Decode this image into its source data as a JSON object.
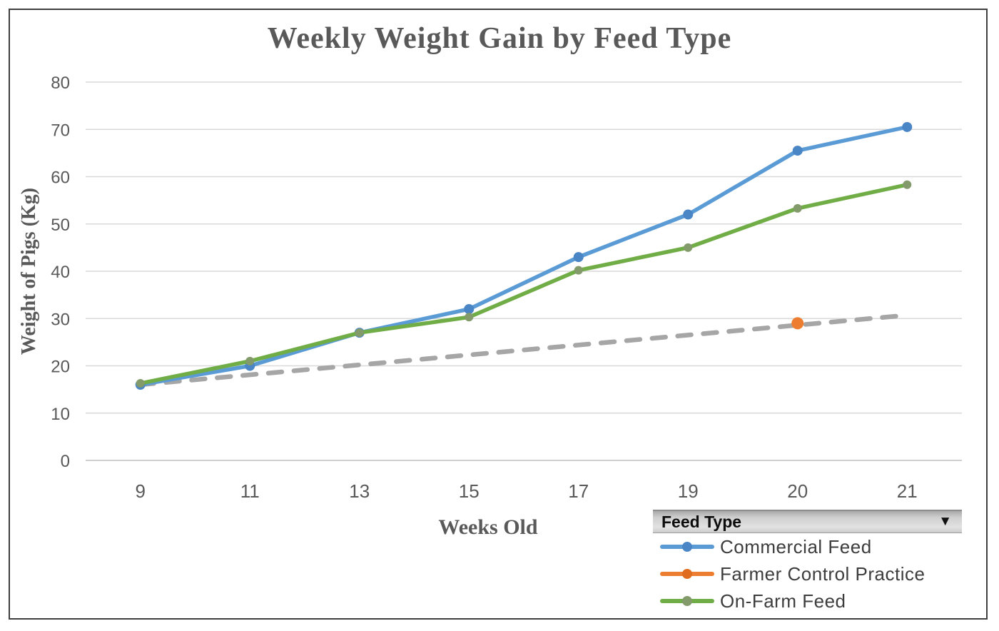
{
  "figure": {
    "title": "Weekly Weight Gain by Feed Type",
    "x_axis_title": "Weeks Old",
    "y_axis_title": "Weight of Pigs (Kg)"
  },
  "legend": {
    "dropdown_label": "Feed Type",
    "dropdown_arrow": "▼",
    "entries": [
      {
        "label": "Commercial Feed",
        "color": "#5B9BD5",
        "marker_color": "#4a85c6"
      },
      {
        "label": "Farmer Control Practice",
        "color": "#ED7D31",
        "marker_color": "#e06d1f"
      },
      {
        "label": "On-Farm Feed",
        "color": "#70AD47",
        "marker_color": "#839a6b"
      }
    ]
  },
  "chart_data": {
    "type": "line",
    "title": "Weekly Weight Gain by Feed Type",
    "xlabel": "Weeks Old",
    "ylabel": "Weight of Pigs (Kg)",
    "categories": [
      9,
      11,
      13,
      15,
      17,
      19,
      20,
      21
    ],
    "y_ticks": [
      0,
      10,
      20,
      30,
      40,
      50,
      60,
      70,
      80
    ],
    "ylim": [
      0,
      80
    ],
    "grid": true,
    "gridline_color": "#D9D9D9",
    "axis_line_color": "#BFBFBF",
    "legend_position": "bottom-right",
    "series": [
      {
        "name": "Commercial Feed",
        "color": "#5B9BD5",
        "marker_fill": "#4a85c6",
        "marker_radius": 7,
        "values": [
          16,
          20,
          27,
          32,
          43,
          52,
          65.5,
          70.5
        ]
      },
      {
        "name": "Farmer Control Practice",
        "color": "#ED7D31",
        "marker_fill": "#ED7D31",
        "marker_radius": 8.5,
        "values": [
          null,
          null,
          null,
          null,
          null,
          null,
          29,
          null
        ]
      },
      {
        "name": "On-Farm Feed",
        "color": "#70AD47",
        "marker_fill": "#839a6b",
        "marker_radius": 6,
        "values": [
          16.3,
          21,
          27,
          30.3,
          40.2,
          45,
          53.3,
          58.3
        ]
      }
    ],
    "trendline": {
      "for_series": "Farmer Control Practice",
      "style": "dashed",
      "color": "#A6A6A6",
      "values": [
        16,
        18.1,
        20.2,
        22.3,
        24.4,
        26.5,
        28.6,
        30.7
      ]
    }
  }
}
